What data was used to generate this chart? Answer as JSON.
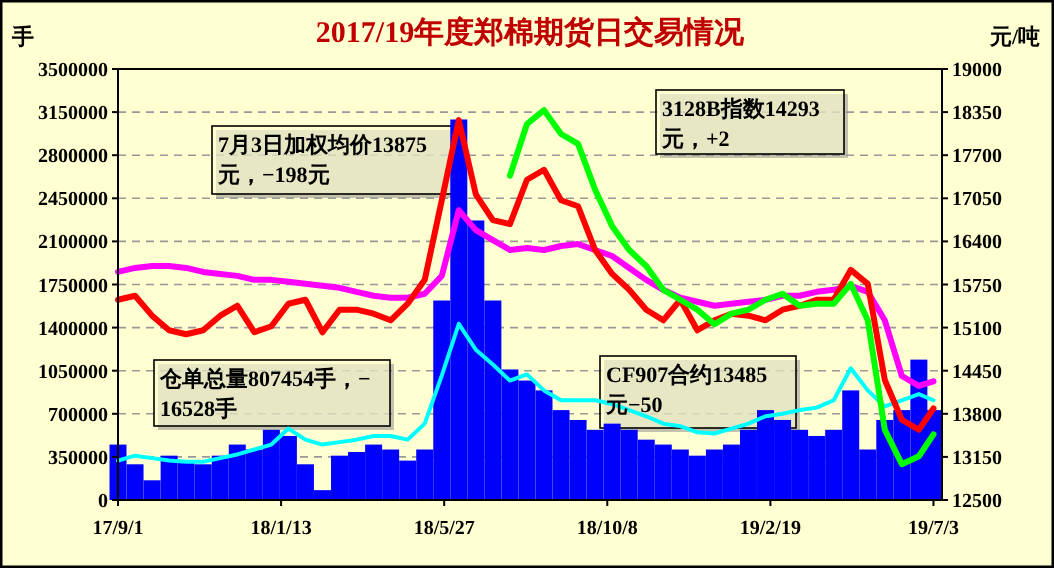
{
  "chart_data": {
    "type": "bar",
    "title": "2017/19年度郑棉期货日交易情况",
    "ylabel": "手",
    "y2label": "元/吨",
    "x": [
      "2017-09-01",
      "2017-09-15",
      "2017-09-29",
      "2017-10-13",
      "2017-10-27",
      "2017-11-10",
      "2017-11-24",
      "2017-12-08",
      "2017-12-22",
      "2018-01-05",
      "2018-01-19",
      "2018-02-02",
      "2018-02-16",
      "2018-03-02",
      "2018-03-16",
      "2018-03-30",
      "2018-04-13",
      "2018-04-27",
      "2018-05-11",
      "2018-05-25",
      "2018-06-08",
      "2018-06-22",
      "2018-07-06",
      "2018-07-20",
      "2018-08-03",
      "2018-08-17",
      "2018-08-31",
      "2018-09-14",
      "2018-09-28",
      "2018-10-12",
      "2018-10-26",
      "2018-11-09",
      "2018-11-23",
      "2018-12-07",
      "2018-12-21",
      "2019-01-04",
      "2019-01-18",
      "2019-02-01",
      "2019-02-15",
      "2019-03-01",
      "2019-03-15",
      "2019-03-29",
      "2019-04-12",
      "2019-04-26",
      "2019-05-10",
      "2019-05-24",
      "2019-06-07",
      "2019-06-21",
      "2019-07-03"
    ],
    "xlim": [
      "2017-09-01",
      "2019-07-10"
    ],
    "xticks": [
      {
        "value": "2017-09-01",
        "label": "17/9/1"
      },
      {
        "value": "2018-01-13",
        "label": "18/1/13"
      },
      {
        "value": "2018-05-27",
        "label": "18/5/27"
      },
      {
        "value": "2018-10-08",
        "label": "18/10/8"
      },
      {
        "value": "2019-02-19",
        "label": "19/2/19"
      },
      {
        "value": "2019-07-03",
        "label": "19/7/3"
      }
    ],
    "ylim": [
      0,
      3500000
    ],
    "yticks": [
      0,
      350000,
      700000,
      1050000,
      1400000,
      1750000,
      2100000,
      2450000,
      2800000,
      3150000,
      3500000
    ],
    "y2lim": [
      12500,
      19000
    ],
    "y2ticks": [
      12500,
      13150,
      13800,
      14450,
      15100,
      15750,
      16400,
      17050,
      17700,
      18350,
      19000
    ],
    "grid": "y",
    "series": [
      {
        "color": "#0000ff",
        "values": [
          450000,
          290000,
          160000,
          360000,
          320000,
          290000,
          360000,
          450000,
          410000,
          570000,
          520000,
          290000,
          80000,
          360000,
          390000,
          450000,
          410000,
          320000,
          410000,
          1620000,
          3090000,
          2270000,
          1620000,
          1060000,
          970000,
          890000,
          730000,
          650000,
          570000,
          620000,
          570000,
          490000,
          450000,
          410000,
          360000,
          410000,
          450000,
          570000,
          730000,
          650000,
          570000,
          520000,
          570000,
          890000,
          410000,
          650000,
          730000,
          1140000,
          730000
        ]
      },
      {
        "type": "line",
        "color": "#00ffff",
        "values": [
          320000,
          360000,
          340000,
          320000,
          310000,
          310000,
          340000,
          370000,
          410000,
          450000,
          580000,
          490000,
          450000,
          470000,
          490000,
          520000,
          520000,
          490000,
          620000,
          1010000,
          1430000,
          1220000,
          1100000,
          970000,
          1020000,
          890000,
          810000,
          810000,
          810000,
          780000,
          730000,
          680000,
          620000,
          600000,
          550000,
          540000,
          580000,
          620000,
          680000,
          700000,
          730000,
          750000,
          810000,
          1070000,
          890000,
          760000,
          810000,
          860000,
          810000
        ]
      },
      {
        "type": "line",
        "axis": "y2",
        "color": "#ff00ff",
        "values": [
          15940,
          16000,
          16030,
          16030,
          16000,
          15940,
          15910,
          15880,
          15820,
          15820,
          15790,
          15760,
          15730,
          15700,
          15640,
          15580,
          15550,
          15550,
          15610,
          15880,
          16870,
          16570,
          16420,
          16270,
          16300,
          16270,
          16330,
          16360,
          16270,
          16180,
          16000,
          15820,
          15670,
          15550,
          15490,
          15430,
          15460,
          15490,
          15520,
          15580,
          15580,
          15640,
          15670,
          15730,
          15640,
          15210,
          14370,
          14220,
          14290
        ]
      },
      {
        "type": "line",
        "axis": "y2",
        "color": "#ff0000",
        "values": [
          15520,
          15580,
          15280,
          15060,
          15000,
          15060,
          15280,
          15430,
          15030,
          15120,
          15460,
          15520,
          15030,
          15370,
          15370,
          15310,
          15210,
          15460,
          15820,
          17020,
          18230,
          17110,
          16720,
          16660,
          17330,
          17480,
          17020,
          16930,
          16270,
          15910,
          15670,
          15370,
          15210,
          15520,
          15060,
          15210,
          15310,
          15280,
          15210,
          15370,
          15430,
          15520,
          15520,
          15970,
          15760,
          14310,
          13710,
          13560,
          13880
        ]
      },
      {
        "type": "line",
        "axis": "y2",
        "color": "#00ff00",
        "values": [
          null,
          null,
          null,
          null,
          null,
          null,
          null,
          null,
          null,
          null,
          null,
          null,
          null,
          null,
          null,
          null,
          null,
          null,
          null,
          null,
          null,
          null,
          null,
          17390,
          18170,
          18380,
          18020,
          17870,
          17180,
          16630,
          16270,
          16030,
          15670,
          15520,
          15370,
          15150,
          15310,
          15370,
          15520,
          15610,
          15430,
          15460,
          15460,
          15760,
          15210,
          13560,
          13040,
          13160,
          13490
        ]
      }
    ],
    "annotations": [
      "7月3日加权均价13875\n元，−198元",
      "3128B指数14293\n元，+2",
      "仓单总量807454手，−\n16528手",
      "CF907合约13485\n元−50"
    ]
  }
}
